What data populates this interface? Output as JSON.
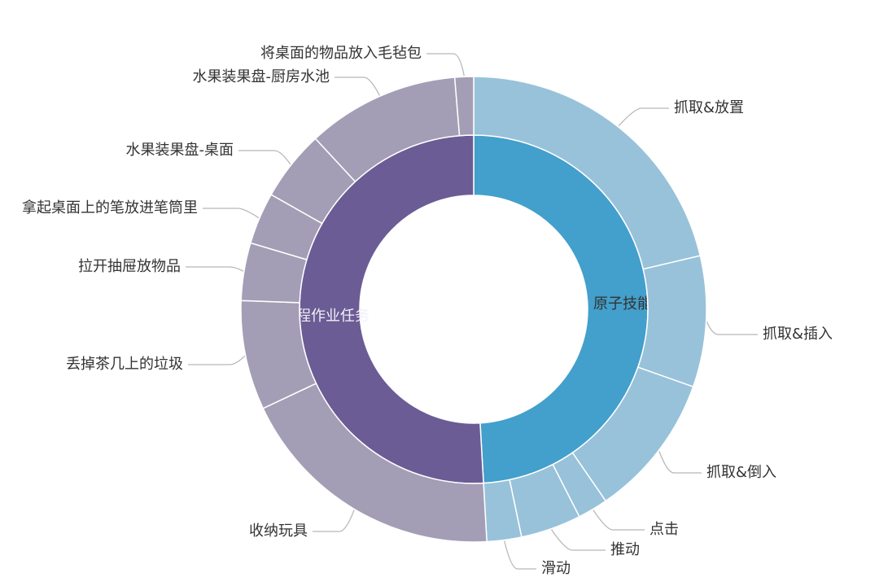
{
  "chart_data": {
    "type": "sunburst",
    "unit": "percent (estimated share of circle)",
    "colors": {
      "inner": {
        "原子技能": "#439fcb",
        "长程作业任务": "#6b5c95"
      },
      "outer": {
        "原子技能": "#98c2da",
        "长程作业任务": "#a39eb5"
      },
      "separator": "#ffffff"
    },
    "inner": [
      {
        "name": "原子技能",
        "value": 49.1
      },
      {
        "name": "长程作业任务",
        "value": 50.9
      }
    ],
    "outer": [
      {
        "name": "抓取&放置",
        "parent": "原子技能",
        "value": 21.3
      },
      {
        "name": "抓取&插入",
        "parent": "原子技能",
        "value": 9.1
      },
      {
        "name": "抓取&倒入",
        "parent": "原子技能",
        "value": 10.0
      },
      {
        "name": "点击",
        "parent": "原子技能",
        "value": 2.1
      },
      {
        "name": "推动",
        "parent": "原子技能",
        "value": 4.2
      },
      {
        "name": "滑动",
        "parent": "原子技能",
        "value": 2.4
      },
      {
        "name": "收纳玩具",
        "parent": "长程作业任务",
        "value": 18.9
      },
      {
        "name": "丢掉茶几上的垃圾",
        "parent": "长程作业任务",
        "value": 7.6
      },
      {
        "name": "拉开抽屉放物品",
        "parent": "长程作业任务",
        "value": 4.0
      },
      {
        "name": "拿起桌面上的笔放进笔筒里",
        "parent": "长程作业任务",
        "value": 3.6
      },
      {
        "name": "水果装果盘-桌面",
        "parent": "长程作业任务",
        "value": 4.9
      },
      {
        "name": "水果装果盘-厨房水池",
        "parent": "长程作业任务",
        "value": 10.6
      },
      {
        "name": "将桌面的物品放入毛毡包",
        "parent": "长程作业任务",
        "value": 1.3
      }
    ]
  }
}
